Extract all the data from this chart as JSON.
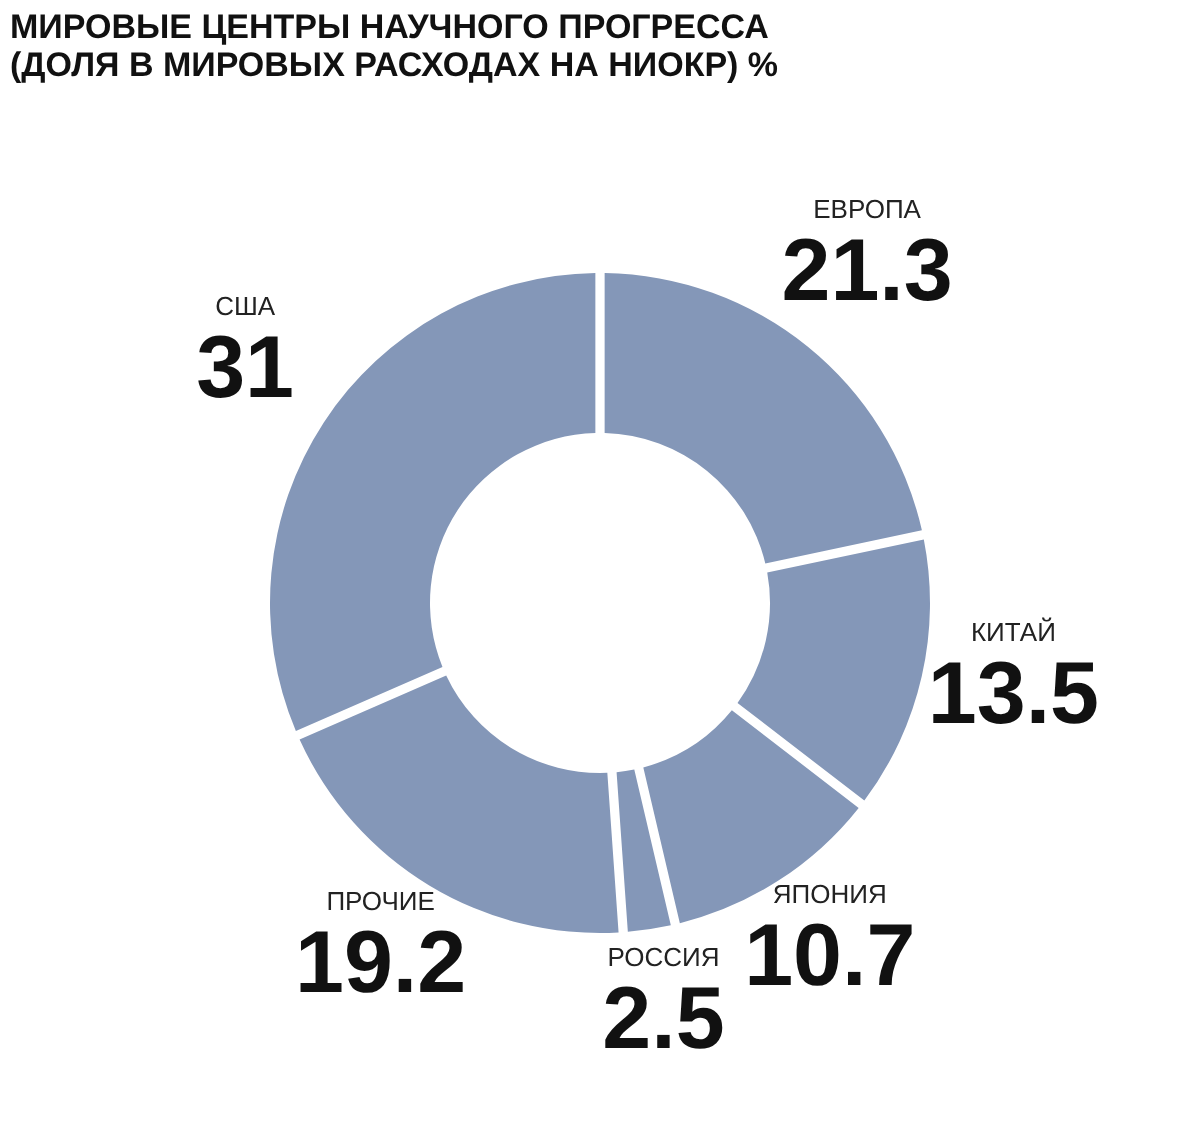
{
  "chart_data": {
    "type": "donut",
    "title": "МИРОВЫЕ ЦЕНТРЫ НАУЧНОГО ПРОГРЕССА\n(ДОЛЯ В МИРОВЫХ РАСХОДАХ НА НИОКР) %",
    "categories": [
      "ЕВРОПА",
      "КИТАЙ",
      "ЯПОНИЯ",
      "РОССИЯ",
      "ПРОЧИЕ",
      "США"
    ],
    "values": [
      21.3,
      13.5,
      10.7,
      2.5,
      19.2,
      31
    ],
    "colors": [
      "#8497b8",
      "#8497b8",
      "#8497b8",
      "#8497b8",
      "#8497b8",
      "#8497b8"
    ],
    "data_labels": true,
    "legend": false
  }
}
